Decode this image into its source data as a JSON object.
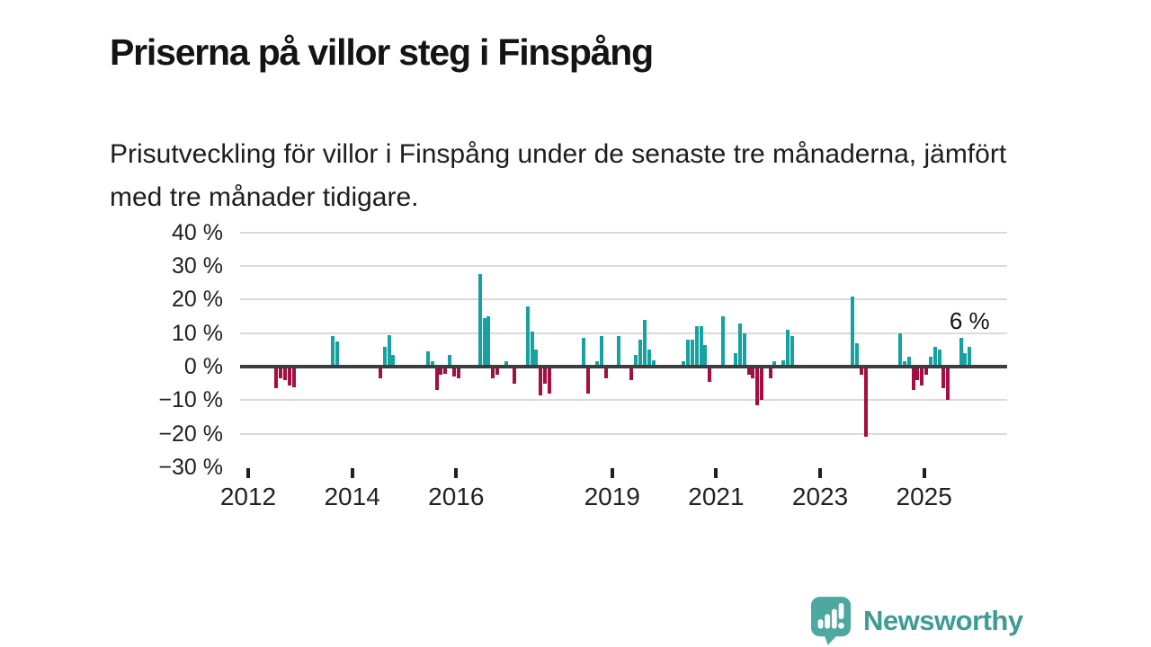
{
  "title": "Priserna på villor steg i Finspång",
  "subtitle": "Prisutveckling för villor i Finspång under de senaste tre månaderna, jämfört med tre månader tidigare.",
  "annotation": "6 %",
  "branding": {
    "name": "Newsworthy",
    "logo_icon": "speech-bubble-bar-chart-icon",
    "text_color": "#3E9C96",
    "bubble_color": "#4CA8A1"
  },
  "colors": {
    "positive": "#16A2A0",
    "negative": "#A40E42",
    "grid": "#DADADA",
    "zero_axis": "#3D3D3D",
    "text": "#222222"
  },
  "chart_data": {
    "type": "bar",
    "unit": "%",
    "title": "Prisutveckling för villor i Finspång, tre månader jämfört med tre månader tidigare",
    "xlabel": "",
    "ylabel": "",
    "ylim": [
      -30,
      42
    ],
    "x_range_years": [
      2012,
      2026.6
    ],
    "grid": "horizontal",
    "legend": "none",
    "annotation_on_last_point": "6 %",
    "y_ticks": [
      {
        "value": 40,
        "label": "40 %"
      },
      {
        "value": 30,
        "label": "30 %"
      },
      {
        "value": 20,
        "label": "20 %"
      },
      {
        "value": 10,
        "label": "10 %"
      },
      {
        "value": 0,
        "label": "0 %"
      },
      {
        "value": -10,
        "label": "−10 %"
      },
      {
        "value": -20,
        "label": "−20 %"
      },
      {
        "value": -30,
        "label": "−30 %"
      }
    ],
    "x_ticks": [
      {
        "year": 2012,
        "label": "2012"
      },
      {
        "year": 2014,
        "label": "2014"
      },
      {
        "year": 2016,
        "label": "2016"
      },
      {
        "year": 2019,
        "label": "2019"
      },
      {
        "year": 2021,
        "label": "2021"
      },
      {
        "year": 2023,
        "label": "2023"
      },
      {
        "year": 2025,
        "label": "2025"
      }
    ],
    "points": [
      [
        "2012-07",
        -6
      ],
      [
        "2012-08",
        -3
      ],
      [
        "2012-09",
        -3.5
      ],
      [
        "2012-10",
        -5
      ],
      [
        "2012-11",
        -5.5
      ],
      [
        "2013-08",
        9
      ],
      [
        "2013-09",
        7.5
      ],
      [
        "2014-07",
        -3
      ],
      [
        "2014-08",
        6
      ],
      [
        "2014-09",
        9.5
      ],
      [
        "2014-10",
        3.5
      ],
      [
        "2015-06",
        4.5
      ],
      [
        "2015-07",
        1.5
      ],
      [
        "2015-08",
        -6.5
      ],
      [
        "2015-09",
        -2
      ],
      [
        "2015-10",
        -1.5
      ],
      [
        "2015-11",
        3.5
      ],
      [
        "2015-12",
        -2.5
      ],
      [
        "2016-01",
        -3
      ],
      [
        "2016-06",
        27.5
      ],
      [
        "2016-07",
        14.5
      ],
      [
        "2016-08",
        15
      ],
      [
        "2016-09",
        -3
      ],
      [
        "2016-10",
        -2
      ],
      [
        "2016-12",
        1.5
      ],
      [
        "2017-02",
        -4.5
      ],
      [
        "2017-05",
        18
      ],
      [
        "2017-06",
        10.5
      ],
      [
        "2017-07",
        5
      ],
      [
        "2017-08",
        -8
      ],
      [
        "2017-09",
        -4.5
      ],
      [
        "2017-10",
        -7.5
      ],
      [
        "2018-06",
        8.5
      ],
      [
        "2018-07",
        -7.5
      ],
      [
        "2018-09",
        1.5
      ],
      [
        "2018-10",
        9
      ],
      [
        "2018-11",
        -3
      ],
      [
        "2019-02",
        9
      ],
      [
        "2019-05",
        -3.5
      ],
      [
        "2019-06",
        3.5
      ],
      [
        "2019-07",
        8
      ],
      [
        "2019-08",
        14
      ],
      [
        "2019-09",
        5
      ],
      [
        "2019-10",
        2
      ],
      [
        "2020-05",
        1.5
      ],
      [
        "2020-06",
        8
      ],
      [
        "2020-07",
        8
      ],
      [
        "2020-08",
        12
      ],
      [
        "2020-09",
        12
      ],
      [
        "2020-10",
        6.5
      ],
      [
        "2020-11",
        -4
      ],
      [
        "2021-02",
        15
      ],
      [
        "2021-05",
        4
      ],
      [
        "2021-06",
        13
      ],
      [
        "2021-07",
        10
      ],
      [
        "2021-08",
        -2
      ],
      [
        "2021-09",
        -3
      ],
      [
        "2021-10",
        -11
      ],
      [
        "2021-11",
        -9.5
      ],
      [
        "2022-01",
        -3
      ],
      [
        "2022-02",
        1.5
      ],
      [
        "2022-04",
        2
      ],
      [
        "2022-05",
        11
      ],
      [
        "2022-06",
        9
      ],
      [
        "2023-08",
        21
      ],
      [
        "2023-09",
        7
      ],
      [
        "2023-10",
        -2
      ],
      [
        "2023-11",
        -20.5
      ],
      [
        "2024-07",
        10
      ],
      [
        "2024-08",
        1.5
      ],
      [
        "2024-09",
        3
      ],
      [
        "2024-10",
        -6.5
      ],
      [
        "2024-11",
        -3.5
      ],
      [
        "2024-12",
        -5
      ],
      [
        "2025-01",
        -2
      ],
      [
        "2025-02",
        3
      ],
      [
        "2025-03",
        6
      ],
      [
        "2025-04",
        5
      ],
      [
        "2025-05",
        -6
      ],
      [
        "2025-06",
        -9.5
      ],
      [
        "2025-09",
        8.5
      ],
      [
        "2025-10",
        4
      ],
      [
        "2025-11",
        6
      ]
    ]
  }
}
